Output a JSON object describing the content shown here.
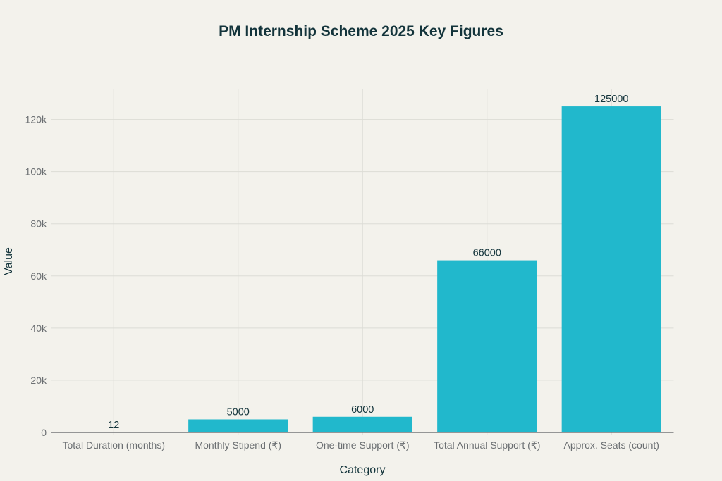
{
  "chart_data": {
    "type": "bar",
    "title": "PM Internship Scheme 2025 Key Figures",
    "xlabel": "Category",
    "ylabel": "Value",
    "categories": [
      "Total Duration (months)",
      "Monthly Stipend (₹)",
      "One-time Support (₹)",
      "Total Annual Support (₹)",
      "Approx. Seats (count)"
    ],
    "values": [
      12,
      5000,
      6000,
      66000,
      125000
    ],
    "data_labels": [
      "12",
      "5000",
      "6000",
      "66000",
      "125000"
    ],
    "ylim": [
      0,
      131500
    ],
    "yticks": [
      0,
      20000,
      40000,
      60000,
      80000,
      100000,
      120000
    ],
    "ytick_labels": [
      "0",
      "20k",
      "40k",
      "60k",
      "80k",
      "100k",
      "120k"
    ],
    "grid": true,
    "bar_color": "#21b8cc",
    "background": "#f3f2ec"
  }
}
